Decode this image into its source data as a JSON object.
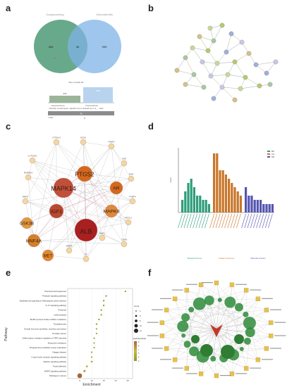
{
  "panel_labels": [
    "a",
    "b",
    "c",
    "d",
    "e",
    "f"
  ],
  "panel_a": {
    "venn_left_label": "Ganpaosheng",
    "venn_right_label": "Osteoarthritis",
    "venn_left_only": "306",
    "venn_overlap": "35",
    "venn_right_only": "999",
    "bars_title": "Size of each list",
    "bar_left_value": "341",
    "bar_right_value": "1034",
    "bar_left_name": "Ganpaosheng",
    "bar_right_name": "Osteoarthritis",
    "bars2_title": "Number of elements: specific (1) or shared by 2, 3, ... lists",
    "bar2_value": "35",
    "bar2_left_name": "1340"
  },
  "panel_c": {
    "nodes": [
      "CTNNA1",
      "NOS2",
      "FABP3",
      "CYP19A1",
      "KDR",
      "PTGS2",
      "RARRES",
      "MAPK14",
      "AR",
      "ESR",
      "BMP2",
      "FABP4",
      "IGF1",
      "MAPK8",
      "GSK3B",
      "PROC1",
      "HNF4A",
      "ALB",
      "MET",
      "MMP3",
      "CDKN",
      "F2",
      "HNF1"
    ]
  },
  "panel_d": {
    "legend": [
      "BP",
      "CC",
      "MF"
    ],
    "ylabel": "count",
    "group_labels": [
      "Biological Process",
      "Cellular Component",
      "Molecular Function"
    ]
  },
  "panel_e": {
    "xlabel": "Enrichment",
    "ylabel": "Pathway",
    "pathways": [
      "Chemical carcinogenesis",
      "Prolactin signaling pathway",
      "Epithelial cell signaling in Helicobacter pylori infection",
      "IL-17 signaling pathway",
      "Pertussis",
      "Leishmaniasis",
      "EGFR tyrosine kinase inhibitor resistance",
      "Toxoplasmosis",
      "Growth hormone synthesis, secretion and action",
      "Prostate cancer",
      "Inflammatory mediator regulation of TRP channels",
      "Endocrine resistance",
      "Progesterone-mediated oocyte maturation",
      "Chagas disease",
      "C-type lectin receptor signaling pathway",
      "Relaxin signaling pathway",
      "Focal adhesion",
      "MAPK signaling pathway",
      "Pathways in cancer"
    ],
    "legend_count_title": "count",
    "legend_count_values": [
      "4",
      "6",
      "8",
      "10",
      "12"
    ],
    "legend_p_title": "-log10(pvalue)",
    "legend_p_values": [
      "4",
      "5",
      "6",
      "7",
      "8",
      "9"
    ],
    "xticks": [
      "5",
      "10",
      "15",
      "20",
      "25"
    ]
  },
  "panel_f": {
    "center_label": ""
  },
  "colors": {
    "venn_left": "#4e9a78",
    "venn_right": "#7fb3e6",
    "net_c_hub": "#b22222",
    "bar_bp": "#2e9d7a",
    "bar_cc": "#c8762a",
    "bar_mf": "#5555b0",
    "network_f_node": "#2e8b3a",
    "network_f_square": "#e6c24a"
  },
  "chart_data": [
    {
      "type": "bar",
      "panel": "d",
      "series": [
        {
          "name": "BP",
          "values": [
            3,
            5,
            7,
            8,
            6,
            4,
            4,
            3,
            3,
            2
          ]
        },
        {
          "name": "CC",
          "values": [
            14,
            14,
            10,
            10,
            9,
            8,
            7,
            6,
            5,
            4
          ]
        },
        {
          "name": "MF",
          "values": [
            6,
            4,
            4,
            3,
            3,
            3,
            2,
            2,
            2,
            2
          ]
        }
      ],
      "ylim": [
        0,
        15
      ],
      "legend_position": "top-right"
    },
    {
      "type": "scatter",
      "panel": "e",
      "categories": [
        "Chemical carcinogenesis",
        "Prolactin signaling pathway",
        "Epithelial cell signaling in Helicobacter pylori infection",
        "IL-17 signaling pathway",
        "Pertussis",
        "Leishmaniasis",
        "EGFR tyrosine kinase inhibitor resistance",
        "Toxoplasmosis",
        "Growth hormone synthesis, secretion and action",
        "Prostate cancer",
        "Inflammatory mediator regulation of TRP channels",
        "Endocrine resistance",
        "Progesterone-mediated oocyte maturation",
        "Chagas disease",
        "C-type lectin receptor signaling pathway",
        "Relaxin signaling pathway",
        "Focal adhesion",
        "MAPK signaling pathway",
        "Pathways in cancer"
      ],
      "x": [
        24,
        16,
        15,
        15,
        14,
        14,
        13,
        12,
        12,
        12,
        11,
        11,
        11,
        10,
        10,
        10,
        8,
        7,
        5
      ],
      "size": [
        4,
        4,
        4,
        4,
        4,
        4,
        4,
        4,
        4,
        4,
        4,
        4,
        4,
        4,
        4,
        5,
        5,
        6,
        12
      ],
      "color": [
        4,
        4,
        4,
        4,
        4,
        4,
        4,
        4,
        5,
        5,
        5,
        5,
        5,
        5,
        5,
        6,
        6,
        7,
        9
      ],
      "xlim": [
        0,
        27
      ]
    }
  ]
}
